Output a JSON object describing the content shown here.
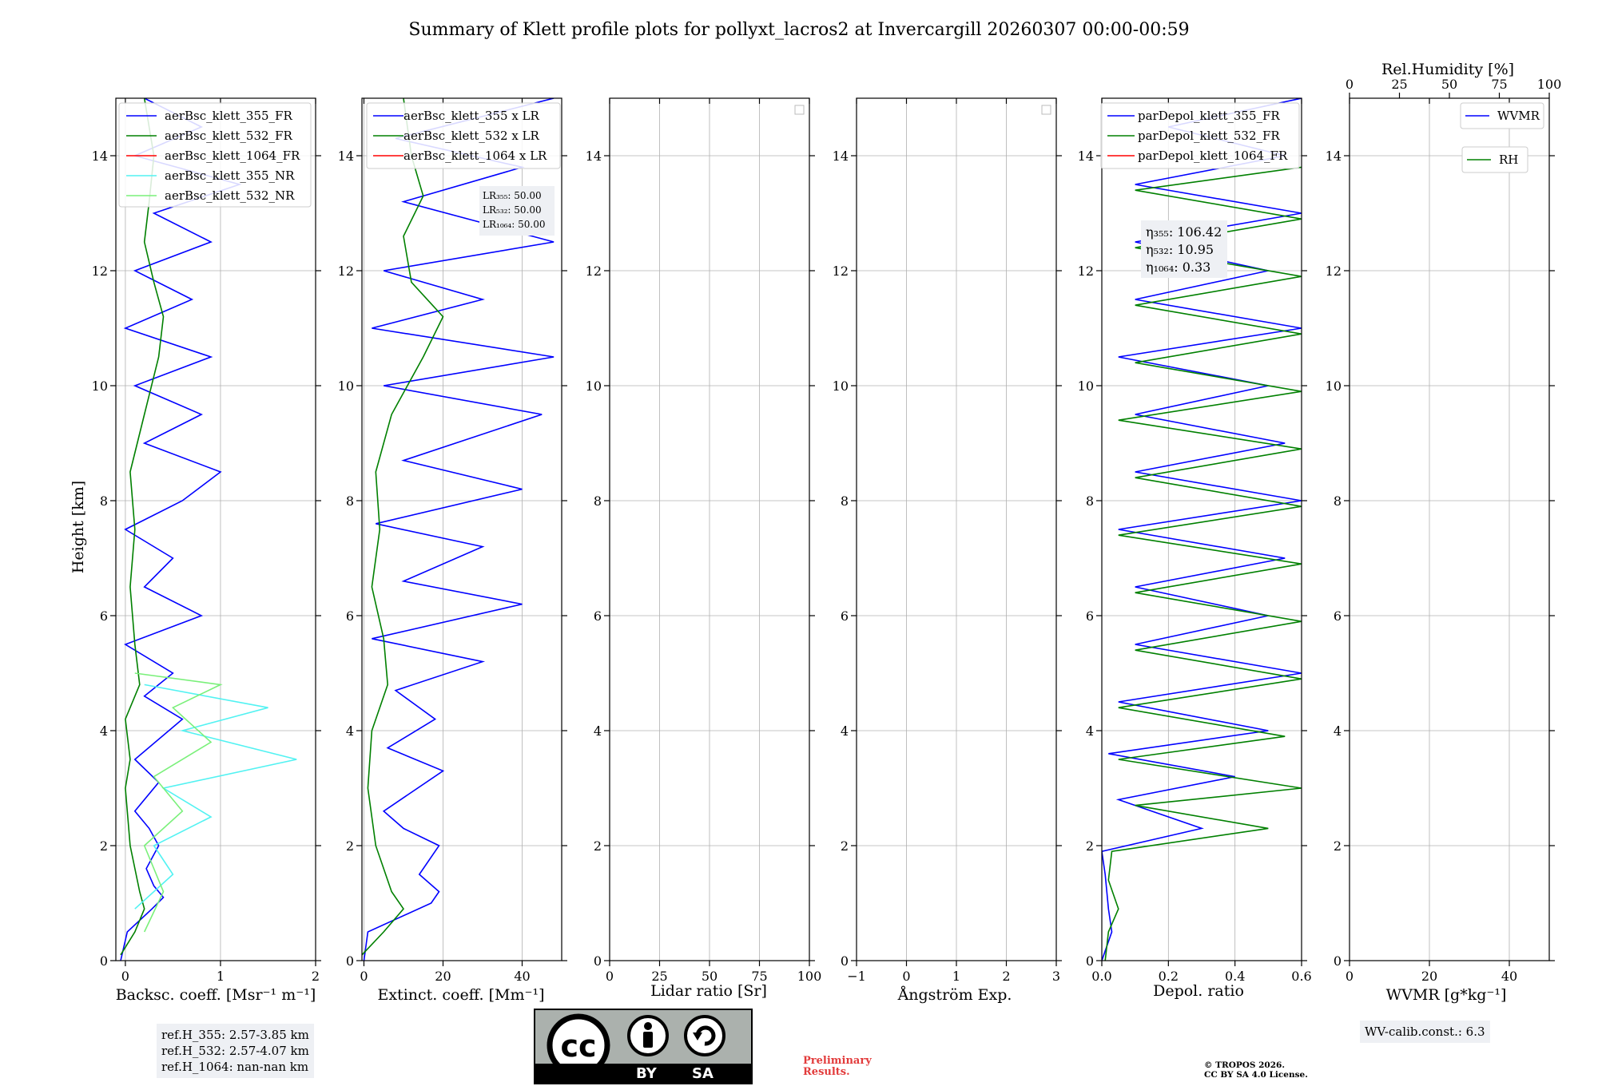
{
  "title": "Summary of Klett profile plots for pollyxt_lacros2 at Invercargill 20260307 00:00-00:59",
  "colors": {
    "c355": "#0000ff",
    "c532": "#008000",
    "c1064": "#ff0000",
    "c355nr": "#52f2f2",
    "c532nr": "#7af07a",
    "prelim": "#e23b3b",
    "infobox": "#eef0f4",
    "grid": "#b0b0b0"
  },
  "panels": [
    {
      "id": "bsc",
      "xlabel": "Backsc. coeff. [Msr⁻¹ m⁻¹]",
      "ylabel": "Height [km]"
    },
    {
      "id": "ext",
      "xlabel": "Extinct. coeff. [Mm⁻¹]"
    },
    {
      "id": "lr",
      "xlabel": "Lidar ratio [Sr]"
    },
    {
      "id": "ang",
      "xlabel": "Ångström Exp."
    },
    {
      "id": "depol",
      "xlabel": "Depol. ratio"
    },
    {
      "id": "wv",
      "xlabel": "WVMR [g*kg⁻¹]",
      "top_xlabel": "Rel.Humidity [%]"
    }
  ],
  "legends": {
    "bsc": [
      "aerBsc_klett_355_FR",
      "aerBsc_klett_532_FR",
      "aerBsc_klett_1064_FR",
      "aerBsc_klett_355_NR",
      "aerBsc_klett_532_NR"
    ],
    "ext": [
      "aerBsc_klett_355 x LR",
      "aerBsc_klett_532 x LR",
      "aerBsc_klett_1064 x LR"
    ],
    "depol": [
      "parDepol_klett_355_FR",
      "parDepol_klett_532_FR",
      "parDepol_klett_1064_FR"
    ],
    "wv": [
      "WVMR",
      "RH"
    ]
  },
  "lr_box": [
    "LR₃₅₅: 50.00",
    "LR₅₃₂: 50.00",
    "LR₁₀₆₄: 50.00"
  ],
  "eta_box": [
    "η₃₅₅: 106.42",
    "η₅₃₂: 10.95",
    "η₁₀₆₄: 0.33"
  ],
  "refh": [
    "ref.H_355: 2.57-3.85 km",
    "ref.H_532: 2.57-4.07 km",
    "ref.H_1064: nan-nan km"
  ],
  "wv_calib": "WV-calib.const.: 6.3",
  "prelim": [
    "Preliminary",
    "Results."
  ],
  "copyright": [
    "© TROPOS 2026.",
    "CC BY SA 4.0 License."
  ],
  "cc": {
    "by": "BY",
    "sa": "SA",
    "cc": "cc"
  },
  "chart_data": {
    "type": "line",
    "ylabel": "Height [km]",
    "ylim": [
      0,
      15
    ],
    "yticks": [
      0,
      2,
      4,
      6,
      8,
      10,
      12,
      14
    ],
    "axes": [
      {
        "id": "bsc",
        "xlim": [
          -0.1,
          2
        ],
        "xticks": [
          0,
          1,
          2
        ],
        "xticklabels": [
          "0",
          "1",
          "2"
        ],
        "series": [
          {
            "name": "aerBsc_klett_355_FR",
            "color": "c355",
            "points": [
              [
                -0.05,
                0
              ],
              [
                0.02,
                0.5
              ],
              [
                0.28,
                0.9
              ],
              [
                0.4,
                1.1
              ],
              [
                0.3,
                1.3
              ],
              [
                0.22,
                1.6
              ],
              [
                0.35,
                2.0
              ],
              [
                0.25,
                2.3
              ],
              [
                0.1,
                2.6
              ],
              [
                0.35,
                3.1
              ],
              [
                0.1,
                3.5
              ],
              [
                0.6,
                4.2
              ],
              [
                0.2,
                4.6
              ],
              [
                0.5,
                5.0
              ],
              [
                0.0,
                5.5
              ],
              [
                0.8,
                6.0
              ],
              [
                0.2,
                6.5
              ],
              [
                0.5,
                7.0
              ],
              [
                0.0,
                7.5
              ],
              [
                0.6,
                8.0
              ],
              [
                1.0,
                8.5
              ],
              [
                0.2,
                9.0
              ],
              [
                0.8,
                9.5
              ],
              [
                0.1,
                10.0
              ],
              [
                0.9,
                10.5
              ],
              [
                0.0,
                11.0
              ],
              [
                0.7,
                11.5
              ],
              [
                0.1,
                12.0
              ],
              [
                0.9,
                12.5
              ],
              [
                0.3,
                13.0
              ],
              [
                1.2,
                13.5
              ],
              [
                0.1,
                14.0
              ],
              [
                0.8,
                14.5
              ],
              [
                0.2,
                15.0
              ]
            ]
          },
          {
            "name": "aerBsc_klett_532_FR",
            "color": "c532",
            "points": [
              [
                -0.05,
                0.1
              ],
              [
                0.1,
                0.5
              ],
              [
                0.2,
                0.9
              ],
              [
                0.15,
                1.2
              ],
              [
                0.05,
                2.0
              ],
              [
                0.0,
                3.0
              ],
              [
                0.05,
                3.5
              ],
              [
                0.0,
                4.2
              ],
              [
                0.15,
                4.8
              ],
              [
                0.1,
                5.5
              ],
              [
                0.05,
                6.5
              ],
              [
                0.1,
                7.5
              ],
              [
                0.05,
                8.5
              ],
              [
                0.2,
                9.5
              ],
              [
                0.35,
                10.5
              ],
              [
                0.4,
                11.2
              ],
              [
                0.3,
                11.8
              ],
              [
                0.2,
                12.5
              ],
              [
                0.25,
                13.2
              ],
              [
                0.3,
                14.0
              ],
              [
                0.2,
                15.0
              ]
            ]
          },
          {
            "name": "aerBsc_klett_1064_FR",
            "color": "c1064",
            "points": []
          },
          {
            "name": "aerBsc_klett_355_NR",
            "color": "c355nr",
            "points": [
              [
                0.1,
                0.9
              ],
              [
                0.5,
                1.5
              ],
              [
                0.3,
                2.0
              ],
              [
                0.9,
                2.5
              ],
              [
                0.4,
                3.0
              ],
              [
                1.8,
                3.5
              ],
              [
                0.6,
                4.0
              ],
              [
                1.5,
                4.4
              ],
              [
                0.2,
                4.8
              ]
            ]
          },
          {
            "name": "aerBsc_klett_532_NR",
            "color": "c532nr",
            "points": [
              [
                0.2,
                0.5
              ],
              [
                0.4,
                1.2
              ],
              [
                0.2,
                2.0
              ],
              [
                0.6,
                2.6
              ],
              [
                0.3,
                3.2
              ],
              [
                0.9,
                3.8
              ],
              [
                0.5,
                4.4
              ],
              [
                1.0,
                4.8
              ],
              [
                0.1,
                5.0
              ]
            ]
          }
        ]
      },
      {
        "id": "ext",
        "xlim": [
          -0.5,
          50
        ],
        "xticks": [
          0,
          20,
          40
        ],
        "xticklabels": [
          "0",
          "20",
          "40"
        ],
        "series": [
          {
            "name": "aerBsc_klett_355 x LR",
            "color": "c355",
            "points": [
              [
                0,
                0
              ],
              [
                1,
                0.5
              ],
              [
                17,
                1.0
              ],
              [
                19,
                1.2
              ],
              [
                14,
                1.5
              ],
              [
                19,
                2.0
              ],
              [
                10,
                2.3
              ],
              [
                5,
                2.6
              ],
              [
                20,
                3.3
              ],
              [
                6,
                3.7
              ],
              [
                18,
                4.2
              ],
              [
                8,
                4.7
              ],
              [
                30,
                5.2
              ],
              [
                2,
                5.6
              ],
              [
                40,
                6.2
              ],
              [
                10,
                6.6
              ],
              [
                30,
                7.2
              ],
              [
                3,
                7.6
              ],
              [
                40,
                8.2
              ],
              [
                10,
                8.7
              ],
              [
                45,
                9.5
              ],
              [
                5,
                10.0
              ],
              [
                48,
                10.5
              ],
              [
                2,
                11.0
              ],
              [
                30,
                11.5
              ],
              [
                5,
                12.0
              ],
              [
                48,
                12.5
              ],
              [
                10,
                13.2
              ],
              [
                40,
                13.8
              ],
              [
                8,
                14.3
              ],
              [
                48,
                15.0
              ]
            ]
          },
          {
            "name": "aerBsc_klett_532 x LR",
            "color": "c532",
            "points": [
              [
                -0.5,
                0.1
              ],
              [
                5,
                0.5
              ],
              [
                10,
                0.9
              ],
              [
                7,
                1.2
              ],
              [
                3,
                2.0
              ],
              [
                1,
                3.0
              ],
              [
                2,
                4.0
              ],
              [
                6,
                4.8
              ],
              [
                5,
                5.6
              ],
              [
                2,
                6.5
              ],
              [
                4,
                7.5
              ],
              [
                3,
                8.5
              ],
              [
                7,
                9.5
              ],
              [
                15,
                10.5
              ],
              [
                20,
                11.2
              ],
              [
                12,
                11.8
              ],
              [
                10,
                12.6
              ],
              [
                15,
                13.3
              ],
              [
                12,
                14.0
              ],
              [
                10,
                15.0
              ]
            ]
          },
          {
            "name": "aerBsc_klett_1064 x LR",
            "color": "c1064",
            "points": []
          }
        ]
      },
      {
        "id": "lr",
        "xlim": [
          0,
          100
        ],
        "xticks": [
          0,
          25,
          50,
          75,
          100
        ],
        "xticklabels": [
          "0",
          "25",
          "50",
          "75",
          "100"
        ],
        "series": []
      },
      {
        "id": "ang",
        "xlim": [
          -1,
          3
        ],
        "xticks": [
          -1,
          0,
          1,
          2,
          3
        ],
        "xticklabels": [
          "−1",
          "0",
          "1",
          "2",
          "3"
        ],
        "series": []
      },
      {
        "id": "depol",
        "xlim": [
          0,
          0.6
        ],
        "xticks": [
          0,
          0.2,
          0.4,
          0.6
        ],
        "xticklabels": [
          "0.0",
          "0.2",
          "0.4",
          "0.6"
        ],
        "series": [
          {
            "name": "parDepol_klett_355_FR",
            "color": "c355",
            "points": [
              [
                0,
                0
              ],
              [
                0.03,
                0.5
              ],
              [
                0.02,
                0.9
              ],
              [
                0.01,
                1.5
              ],
              [
                0.0,
                1.9
              ],
              [
                0.3,
                2.3
              ],
              [
                0.05,
                2.8
              ],
              [
                0.4,
                3.2
              ],
              [
                0.02,
                3.6
              ],
              [
                0.5,
                4.0
              ],
              [
                0.05,
                4.5
              ],
              [
                0.6,
                5.0
              ],
              [
                0.1,
                5.5
              ],
              [
                0.5,
                6.0
              ],
              [
                0.1,
                6.5
              ],
              [
                0.55,
                7.0
              ],
              [
                0.05,
                7.5
              ],
              [
                0.6,
                8.0
              ],
              [
                0.1,
                8.5
              ],
              [
                0.55,
                9.0
              ],
              [
                0.1,
                9.5
              ],
              [
                0.5,
                10.0
              ],
              [
                0.05,
                10.5
              ],
              [
                0.6,
                11.0
              ],
              [
                0.1,
                11.5
              ],
              [
                0.5,
                12.0
              ],
              [
                0.1,
                12.5
              ],
              [
                0.6,
                13.0
              ],
              [
                0.1,
                13.5
              ],
              [
                0.55,
                14.0
              ],
              [
                0.2,
                14.5
              ],
              [
                0.6,
                15.0
              ]
            ]
          },
          {
            "name": "parDepol_klett_532_FR",
            "color": "c532",
            "points": [
              [
                0.01,
                0
              ],
              [
                0.02,
                0.5
              ],
              [
                0.05,
                0.9
              ],
              [
                0.02,
                1.4
              ],
              [
                0.03,
                1.9
              ],
              [
                0.5,
                2.3
              ],
              [
                0.1,
                2.7
              ],
              [
                0.6,
                3.0
              ],
              [
                0.05,
                3.5
              ],
              [
                0.55,
                3.9
              ],
              [
                0.05,
                4.4
              ],
              [
                0.6,
                4.9
              ],
              [
                0.1,
                5.4
              ],
              [
                0.6,
                5.9
              ],
              [
                0.1,
                6.4
              ],
              [
                0.6,
                6.9
              ],
              [
                0.05,
                7.4
              ],
              [
                0.6,
                7.9
              ],
              [
                0.1,
                8.4
              ],
              [
                0.6,
                8.9
              ],
              [
                0.05,
                9.4
              ],
              [
                0.6,
                9.9
              ],
              [
                0.1,
                10.4
              ],
              [
                0.6,
                10.9
              ],
              [
                0.1,
                11.4
              ],
              [
                0.6,
                11.9
              ],
              [
                0.1,
                12.4
              ],
              [
                0.6,
                12.9
              ],
              [
                0.1,
                13.4
              ],
              [
                0.6,
                13.8
              ]
            ]
          },
          {
            "name": "parDepol_klett_1064_FR",
            "color": "c1064",
            "points": []
          }
        ]
      },
      {
        "id": "wv",
        "xlim": [
          0,
          50
        ],
        "xticks": [
          0,
          20,
          40
        ],
        "xticklabels": [
          "0",
          "20",
          "40"
        ],
        "top_xlim": [
          0,
          100
        ],
        "top_xticks": [
          0,
          25,
          50,
          75,
          100
        ],
        "top_xticklabels": [
          "0",
          "25",
          "50",
          "75",
          "100"
        ],
        "series": [
          {
            "name": "WVMR",
            "color": "c355",
            "points": []
          },
          {
            "name": "RH",
            "color": "c532",
            "points": []
          }
        ]
      }
    ]
  }
}
